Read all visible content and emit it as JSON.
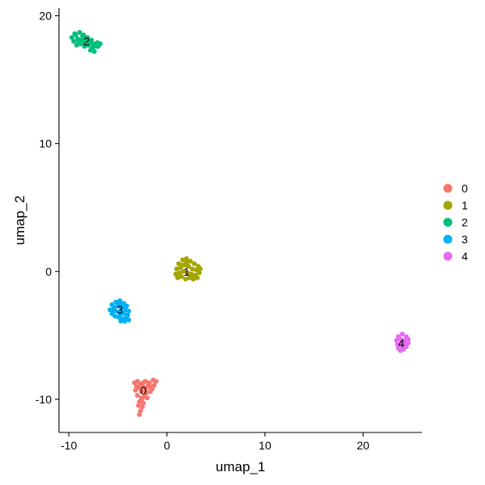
{
  "chart_data": {
    "type": "scatter",
    "title": "",
    "xlabel": "umap_1",
    "ylabel": "umap_2",
    "xlim": [
      -11.0,
      26.0
    ],
    "ylim": [
      -12.6,
      20.6
    ],
    "xticks": [
      -10,
      0,
      10,
      20
    ],
    "yticks": [
      -10,
      0,
      10,
      20
    ],
    "tick_labels_x": [
      "-10",
      "0",
      "10",
      "20"
    ],
    "tick_labels_y": [
      "-10",
      "0",
      "10",
      "20"
    ],
    "grid": false,
    "legend_position": "right",
    "legend": [
      {
        "label": "0",
        "color": "#F8766D"
      },
      {
        "label": "1",
        "color": "#A3A500"
      },
      {
        "label": "2",
        "color": "#00BF7D"
      },
      {
        "label": "3",
        "color": "#00B0F6"
      },
      {
        "label": "4",
        "color": "#E76BF3"
      }
    ],
    "series": [
      {
        "label": "0",
        "color": "#F8766D",
        "center": [
          -2.4,
          -9.3
        ],
        "points": [
          [
            -3.3,
            -8.7
          ],
          [
            -3.0,
            -8.6
          ],
          [
            -2.7,
            -8.8
          ],
          [
            -2.2,
            -8.6
          ],
          [
            -1.8,
            -8.7
          ],
          [
            -1.4,
            -8.5
          ],
          [
            -1.1,
            -8.6
          ],
          [
            -1.3,
            -8.9
          ],
          [
            -1.7,
            -9.0
          ],
          [
            -2.1,
            -9.1
          ],
          [
            -2.5,
            -9.0
          ],
          [
            -2.9,
            -9.1
          ],
          [
            -3.2,
            -9.3
          ],
          [
            -2.6,
            -9.4
          ],
          [
            -2.1,
            -9.5
          ],
          [
            -1.7,
            -9.4
          ],
          [
            -1.5,
            -9.2
          ],
          [
            -3.0,
            -9.7
          ],
          [
            -2.6,
            -9.9
          ],
          [
            -2.3,
            -9.8
          ],
          [
            -2.0,
            -9.9
          ],
          [
            -2.8,
            -10.2
          ],
          [
            -2.4,
            -10.3
          ],
          [
            -2.9,
            -10.5
          ],
          [
            -2.5,
            -10.6
          ],
          [
            -2.7,
            -10.9
          ],
          [
            -2.8,
            -11.2
          ],
          [
            -2.6,
            -10.1
          ],
          [
            -1.9,
            -8.9
          ],
          [
            -2.4,
            -8.7
          ],
          [
            -3.1,
            -9.0
          ],
          [
            -2.2,
            -9.2
          ]
        ]
      },
      {
        "label": "1",
        "color": "#A3A500",
        "center": [
          2.0,
          0.0
        ],
        "points": [
          [
            1.2,
            0.6
          ],
          [
            1.6,
            0.9
          ],
          [
            2.0,
            1.0
          ],
          [
            2.4,
            0.8
          ],
          [
            2.8,
            0.6
          ],
          [
            3.2,
            0.4
          ],
          [
            1.0,
            0.2
          ],
          [
            1.4,
            0.3
          ],
          [
            1.8,
            0.5
          ],
          [
            2.2,
            0.4
          ],
          [
            2.6,
            0.2
          ],
          [
            3.0,
            0.1
          ],
          [
            3.4,
            0.2
          ],
          [
            0.9,
            -0.2
          ],
          [
            1.3,
            -0.1
          ],
          [
            1.7,
            0.0
          ],
          [
            2.1,
            -0.1
          ],
          [
            2.5,
            -0.2
          ],
          [
            2.9,
            -0.3
          ],
          [
            3.3,
            -0.1
          ],
          [
            1.1,
            -0.5
          ],
          [
            1.5,
            -0.4
          ],
          [
            1.9,
            -0.6
          ],
          [
            2.3,
            -0.5
          ],
          [
            2.7,
            -0.6
          ],
          [
            3.1,
            -0.5
          ],
          [
            1.0,
            -0.3
          ],
          [
            2.0,
            0.7
          ],
          [
            2.6,
            -0.4
          ],
          [
            1.6,
            0.5
          ]
        ]
      },
      {
        "label": "2",
        "color": "#00BF7D",
        "center": [
          -8.2,
          18.0
        ],
        "points": [
          [
            -9.7,
            18.3
          ],
          [
            -9.3,
            18.5
          ],
          [
            -8.9,
            18.7
          ],
          [
            -8.5,
            18.5
          ],
          [
            -8.1,
            18.3
          ],
          [
            -7.7,
            18.1
          ],
          [
            -9.5,
            18.0
          ],
          [
            -9.1,
            18.2
          ],
          [
            -8.7,
            18.1
          ],
          [
            -8.3,
            18.0
          ],
          [
            -7.9,
            17.9
          ],
          [
            -7.5,
            17.8
          ],
          [
            -7.1,
            17.9
          ],
          [
            -9.2,
            17.7
          ],
          [
            -8.8,
            17.8
          ],
          [
            -8.4,
            17.6
          ],
          [
            -8.0,
            17.7
          ],
          [
            -7.6,
            17.5
          ],
          [
            -7.2,
            17.6
          ],
          [
            -6.8,
            17.8
          ],
          [
            -7.8,
            17.3
          ],
          [
            -7.4,
            17.2
          ],
          [
            -8.6,
            18.4
          ],
          [
            -9.0,
            18.0
          ],
          [
            -7.3,
            17.7
          ],
          [
            -8.2,
            18.2
          ],
          [
            -9.4,
            18.6
          ],
          [
            -7.0,
            17.6
          ],
          [
            -8.5,
            17.9
          ],
          [
            -7.6,
            17.4
          ]
        ]
      },
      {
        "label": "3",
        "color": "#00B0F6",
        "center": [
          -4.8,
          -3.0
        ],
        "points": [
          [
            -5.6,
            -2.6
          ],
          [
            -5.2,
            -2.4
          ],
          [
            -4.8,
            -2.3
          ],
          [
            -4.4,
            -2.5
          ],
          [
            -4.1,
            -2.7
          ],
          [
            -5.8,
            -3.0
          ],
          [
            -5.4,
            -2.8
          ],
          [
            -5.0,
            -2.7
          ],
          [
            -4.6,
            -2.9
          ],
          [
            -4.2,
            -3.0
          ],
          [
            -3.9,
            -3.1
          ],
          [
            -5.6,
            -3.3
          ],
          [
            -5.2,
            -3.1
          ],
          [
            -4.8,
            -3.2
          ],
          [
            -4.4,
            -3.3
          ],
          [
            -4.0,
            -3.4
          ],
          [
            -5.3,
            -3.5
          ],
          [
            -4.9,
            -3.6
          ],
          [
            -4.5,
            -3.7
          ],
          [
            -4.1,
            -3.6
          ],
          [
            -4.7,
            -3.9
          ],
          [
            -4.3,
            -3.9
          ],
          [
            -3.9,
            -3.8
          ],
          [
            -5.0,
            -2.5
          ],
          [
            -4.6,
            -2.6
          ],
          [
            -5.5,
            -3.1
          ],
          [
            -4.4,
            -2.9
          ],
          [
            -4.8,
            -3.4
          ]
        ]
      },
      {
        "label": "4",
        "color": "#E76BF3",
        "center": [
          23.9,
          -5.6
        ],
        "points": [
          [
            23.6,
            -5.1
          ],
          [
            24.0,
            -4.9
          ],
          [
            24.4,
            -5.1
          ],
          [
            23.4,
            -5.4
          ],
          [
            23.8,
            -5.3
          ],
          [
            24.2,
            -5.4
          ],
          [
            24.6,
            -5.3
          ],
          [
            23.5,
            -5.7
          ],
          [
            23.9,
            -5.6
          ],
          [
            24.3,
            -5.7
          ],
          [
            24.6,
            -5.6
          ],
          [
            23.6,
            -6.0
          ],
          [
            24.0,
            -5.9
          ],
          [
            24.4,
            -5.9
          ],
          [
            23.8,
            -6.2
          ],
          [
            24.1,
            -6.1
          ],
          [
            23.7,
            -5.9
          ],
          [
            24.5,
            -5.5
          ]
        ]
      }
    ]
  }
}
